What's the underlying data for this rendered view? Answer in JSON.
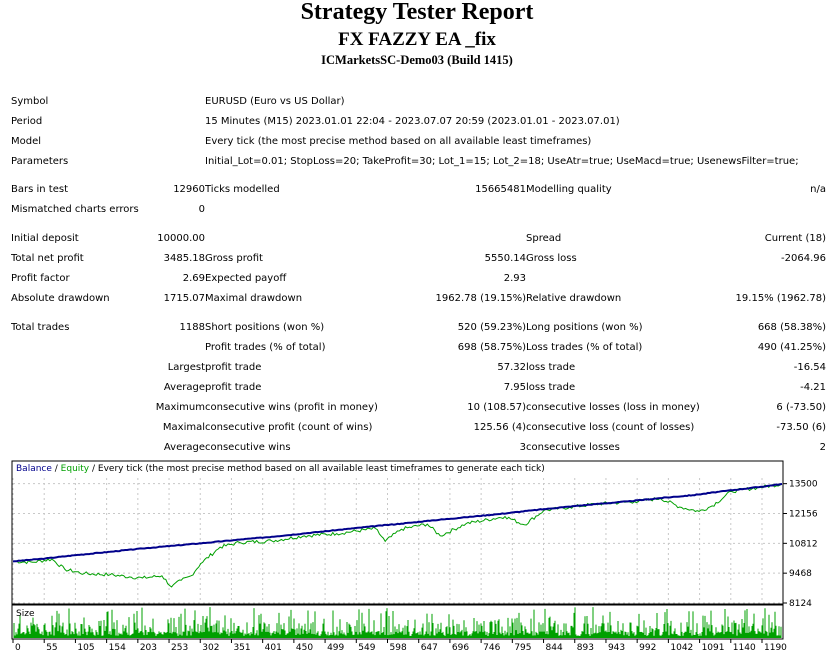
{
  "report": {
    "title": "Strategy Tester Report",
    "subtitle": "FX FAZZY EA _fix",
    "server": "ICMarketsSC-Demo03 (Build 1415)"
  },
  "settings": {
    "symbol_label": "Symbol",
    "symbol": "EURUSD (Euro vs US Dollar)",
    "period_label": "Period",
    "period": "15 Minutes (M15) 2023.01.01 22:04 - 2023.07.07 20:59 (2023.01.01 - 2023.07.01)",
    "model_label": "Model",
    "model": "Every tick (the most precise method based on all available least timeframes)",
    "params_label": "Parameters",
    "params": "Initial_Lot=0.01; StopLoss=20; TakeProfit=30; Lot_1=15; Lot_2=18; UseAtr=true; UseMacd=true; UsenewsFilter=true;"
  },
  "stats": {
    "bars_label": "Bars in test",
    "bars": "12960",
    "ticks_label": "Ticks modelled",
    "ticks": "15665481",
    "quality_label": "Modelling quality",
    "quality": "n/a",
    "mismatch_label": "Mismatched charts errors",
    "mismatch": "0",
    "deposit_label": "Initial deposit",
    "deposit": "10000.00",
    "spread_label": "Spread",
    "spread": "Current (18)",
    "netprofit_label": "Total net profit",
    "netprofit": "3485.18",
    "grossprofit_label": "Gross profit",
    "grossprofit": "5550.14",
    "grossloss_label": "Gross loss",
    "grossloss": "-2064.96",
    "pf_label": "Profit factor",
    "pf": "2.69",
    "payoff_label": "Expected payoff",
    "payoff": "2.93",
    "absdd_label": "Absolute drawdown",
    "absdd": "1715.07",
    "maxdd_label": "Maximal drawdown",
    "maxdd": "1962.78 (19.15%)",
    "reldd_label": "Relative drawdown",
    "reldd": "19.15% (1962.78)",
    "trades_label": "Total trades",
    "trades": "1188",
    "short_label": "Short positions (won %)",
    "short": "520 (59.23%)",
    "long_label": "Long positions (won %)",
    "long": "668 (58.38%)",
    "ptrades_label": "Profit trades (% of total)",
    "ptrades": "698 (58.75%)",
    "ltrades_label": "Loss trades (% of total)",
    "ltrades": "490 (41.25%)",
    "largest_label": "Largest",
    "lpt_label": "profit trade",
    "lpt": "57.32",
    "llt_label": "loss trade",
    "llt": "-16.54",
    "average_label": "Average",
    "apt_label": "profit trade",
    "apt": "7.95",
    "alt_label": "loss trade",
    "alt": "-4.21",
    "maximum_label": "Maximum",
    "mcw_label": "consecutive wins (profit in money)",
    "mcw": "10 (108.57)",
    "mcl_label": "consecutive losses (loss in money)",
    "mcl": "6 (-73.50)",
    "maximal_label": "Maximal",
    "mcp_label": "consecutive profit (count of wins)",
    "mcp": "125.56 (4)",
    "mclc_label": "consecutive loss (count of losses)",
    "mclc": "-73.50 (6)",
    "average2_label": "Average",
    "acw_label": "consecutive wins",
    "acw": "3",
    "acl_label": "consecutive losses",
    "acl": "2"
  },
  "chart_legend": {
    "balance": "Balance",
    "sep1": " / ",
    "equity": "Equity",
    "sep2": " / ",
    "rest": "Every tick (the most precise method based on all available least timeframes to generate each tick)"
  },
  "size_label": "Size",
  "colors": {
    "balance": "#00008b",
    "equity": "#00a000",
    "grid": "#c8c8c8"
  },
  "chart_data": {
    "type": "line",
    "ylim": [
      8124,
      13800
    ],
    "yticks": [
      "13500",
      "12156",
      "10812",
      "9468",
      "8124"
    ],
    "xticks": [
      "0",
      "55",
      "105",
      "154",
      "203",
      "253",
      "302",
      "351",
      "401",
      "450",
      "499",
      "549",
      "598",
      "647",
      "696",
      "746",
      "795",
      "844",
      "893",
      "943",
      "992",
      "1042",
      "1091",
      "1140",
      "1190"
    ],
    "x_max": 1188,
    "series": [
      {
        "name": "Balance",
        "x": [
          0,
          50,
          100,
          150,
          200,
          250,
          300,
          350,
          400,
          450,
          500,
          550,
          600,
          650,
          700,
          750,
          800,
          850,
          900,
          950,
          1000,
          1050,
          1100,
          1150,
          1188
        ],
        "values": [
          10000,
          10130,
          10290,
          10430,
          10580,
          10710,
          10840,
          10980,
          11110,
          11260,
          11410,
          11560,
          11700,
          11850,
          11990,
          12130,
          12290,
          12440,
          12580,
          12700,
          12850,
          12980,
          13170,
          13340,
          13485
        ]
      },
      {
        "name": "Equity",
        "x": [
          0,
          30,
          60,
          80,
          110,
          150,
          180,
          200,
          230,
          245,
          260,
          275,
          290,
          320,
          350,
          400,
          450,
          500,
          560,
          575,
          600,
          640,
          660,
          700,
          760,
          790,
          820,
          860,
          900,
          960,
          1000,
          1030,
          1060,
          1080,
          1110,
          1150,
          1188
        ],
        "values": [
          10000,
          9960,
          10100,
          9640,
          9450,
          9400,
          9300,
          9250,
          9350,
          8850,
          9150,
          9350,
          9900,
          10640,
          10850,
          10920,
          11150,
          11250,
          11480,
          10900,
          11450,
          11680,
          11150,
          11700,
          12020,
          11650,
          12290,
          12440,
          12580,
          12690,
          12840,
          12450,
          12250,
          12500,
          13150,
          13320,
          13480
        ]
      }
    ],
    "size_series_note": ""
  }
}
